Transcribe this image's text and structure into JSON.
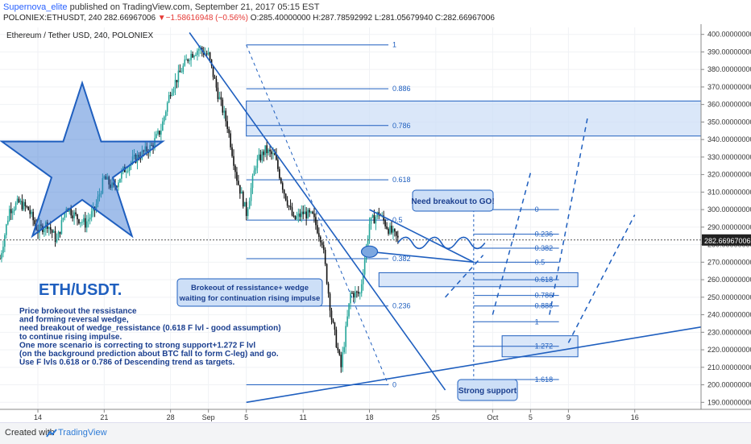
{
  "header": {
    "author": "Supernova_elite",
    "published_text": "published on TradingView.com, September 21, 2017 05:15 EST",
    "symbol": "POLONIEX:ETHUSDT, 240",
    "last": "282.66967006",
    "change_arrow": "▼",
    "change": "−1.58616948 (−0.56%)",
    "ohlc": {
      "o": "O:285.40000000",
      "h": "H:287.78592992",
      "l": "L:281.05679940",
      "c": "C:282.66967006"
    }
  },
  "footer": {
    "created": "Created with",
    "brand": "TradingView",
    "brand_icon": "tradingview-logo-icon"
  },
  "colors": {
    "accent": "#1f5fbf",
    "up": "#26a69a",
    "down": "#111111",
    "fill": "#cddff7",
    "price_tag": "#222222"
  },
  "chart_data": {
    "type": "candlestick",
    "title": "Ethereum / Tether USD, 240, POLONIEX",
    "ylim": [
      186,
      404
    ],
    "yticks": [
      190,
      200,
      210,
      220,
      230,
      240,
      250,
      260,
      270,
      280,
      290,
      300,
      310,
      320,
      330,
      340,
      350,
      360,
      370,
      380,
      390,
      400
    ],
    "ytick_labels": [
      "190.00000000",
      "200.00000000",
      "210.00000000",
      "220.00000000",
      "230.00000000",
      "240.00000000",
      "250.00000000",
      "260.00000000",
      "270.00000000",
      "280.00000000",
      "290.00000000",
      "300.00000000",
      "310.00000000",
      "320.00000000",
      "330.00000000",
      "340.00000000",
      "350.00000000",
      "360.00000000",
      "370.00000000",
      "380.00000000",
      "390.00000000",
      "400.00000000"
    ],
    "x_days": [
      "2017-08-10",
      "2017-10-23"
    ],
    "x_ticks": [
      {
        "label": "14",
        "day": "2017-08-14"
      },
      {
        "label": "21",
        "day": "2017-08-21"
      },
      {
        "label": "28",
        "day": "2017-08-28"
      },
      {
        "label": "Sep",
        "day": "2017-09-01"
      },
      {
        "label": "5",
        "day": "2017-09-05"
      },
      {
        "label": "11",
        "day": "2017-09-11"
      },
      {
        "label": "18",
        "day": "2017-09-18"
      },
      {
        "label": "25",
        "day": "2017-09-25"
      },
      {
        "label": "Oct",
        "day": "2017-10-01"
      },
      {
        "label": "5",
        "day": "2017-10-05"
      },
      {
        "label": "9",
        "day": "2017-10-09"
      },
      {
        "label": "16",
        "day": "2017-10-16"
      }
    ],
    "last_price": 282.66967006,
    "last_price_label": "282.66967006",
    "price_path": [
      [
        "2017-08-10",
        272
      ],
      [
        "2017-08-11",
        300
      ],
      [
        "2017-08-12",
        304
      ],
      [
        "2017-08-13",
        300
      ],
      [
        "2017-08-14",
        288
      ],
      [
        "2017-08-15",
        292
      ],
      [
        "2017-08-16",
        282
      ],
      [
        "2017-08-17",
        302
      ],
      [
        "2017-08-18",
        296
      ],
      [
        "2017-08-19",
        292
      ],
      [
        "2017-08-20",
        300
      ],
      [
        "2017-08-21",
        318
      ],
      [
        "2017-08-22",
        312
      ],
      [
        "2017-08-23",
        322
      ],
      [
        "2017-08-24",
        328
      ],
      [
        "2017-08-25",
        332
      ],
      [
        "2017-08-26",
        336
      ],
      [
        "2017-08-27",
        346
      ],
      [
        "2017-08-28",
        368
      ],
      [
        "2017-08-29",
        378
      ],
      [
        "2017-08-30",
        388
      ],
      [
        "2017-08-31",
        392
      ],
      [
        "2017-09-01",
        388
      ],
      [
        "2017-09-02",
        366
      ],
      [
        "2017-09-03",
        348
      ],
      [
        "2017-09-04",
        318
      ],
      [
        "2017-09-05",
        298
      ],
      [
        "2017-09-06",
        326
      ],
      [
        "2017-09-07",
        334
      ],
      [
        "2017-09-08",
        330
      ],
      [
        "2017-09-09",
        310
      ],
      [
        "2017-09-10",
        294
      ],
      [
        "2017-09-11",
        298
      ],
      [
        "2017-09-12",
        296
      ],
      [
        "2017-09-13",
        282
      ],
      [
        "2017-09-14",
        238
      ],
      [
        "2017-09-15",
        210
      ],
      [
        "2017-09-16",
        252
      ],
      [
        "2017-09-17",
        252
      ],
      [
        "2017-09-18",
        292
      ],
      [
        "2017-09-19",
        298
      ],
      [
        "2017-09-20",
        289
      ],
      [
        "2017-09-21",
        283
      ]
    ],
    "fib_levels": [
      {
        "label": "1",
        "price": 394
      },
      {
        "label": "0.886",
        "price": 369
      },
      {
        "label": "0.786",
        "price": 348
      },
      {
        "label": "0.618",
        "price": 317
      },
      {
        "label": "0.5",
        "price": 294
      },
      {
        "label": "0.382",
        "price": 272
      },
      {
        "label": "0.236",
        "price": 245
      },
      {
        "label": "0",
        "price": 200
      }
    ],
    "fib_ext_levels": [
      {
        "label": "0",
        "price": 300
      },
      {
        "label": "0.236",
        "price": 286
      },
      {
        "label": "0.382",
        "price": 278
      },
      {
        "label": "0.5",
        "price": 270
      },
      {
        "label": "0.618",
        "price": 260
      },
      {
        "label": "0.786",
        "price": 251
      },
      {
        "label": "0.886",
        "price": 245
      },
      {
        "label": "1",
        "price": 236
      },
      {
        "label": "1.272",
        "price": 222
      },
      {
        "label": "1.618",
        "price": 203
      }
    ],
    "zones": [
      {
        "from_day": "2017-09-05",
        "to_day": "2017-10-23",
        "low": 342,
        "high": 362
      },
      {
        "from_day": "2017-09-19",
        "to_day": "2017-10-10",
        "low": 256,
        "high": 264
      },
      {
        "from_day": "2017-10-02",
        "to_day": "2017-10-10",
        "low": 216,
        "high": 228
      }
    ],
    "callouts": {
      "breakout": "Need breakout to GO!",
      "wedge": [
        "Brokeout of ressistance+ wedge",
        "waiting for continuation rising impulse"
      ],
      "support": "Strong support"
    },
    "ticker_label": "ETH/USDT.",
    "notes": [
      "Price brokeout the ressistance",
      "and forming reversal wedge,",
      "need breakout of wedge_ressistance (0.618 F lvl - good assumption)",
      "to continue rising impulse.",
      "One more scenario is correcting to strong support+1.272 F lvl",
      "(on the background prediction about BTC fall to form C-leg) and go.",
      "Use F lvls 0.618 or 0.786 of Descending trend as targets."
    ]
  }
}
